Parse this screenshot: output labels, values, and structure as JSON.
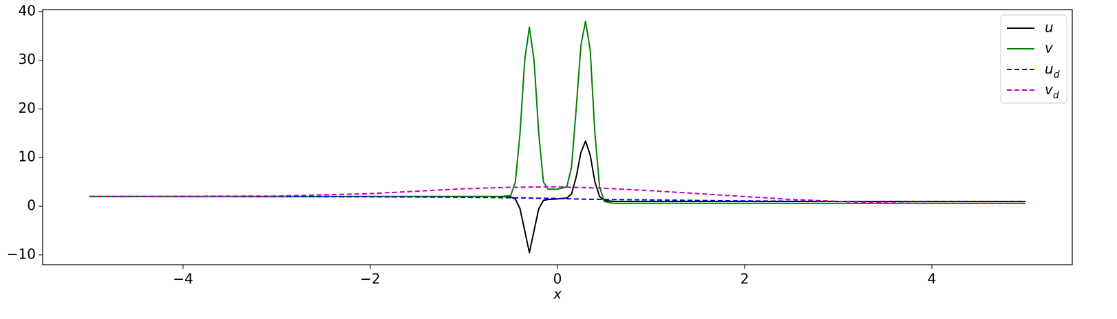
{
  "chart_data": {
    "type": "line",
    "x_label": "x",
    "xlim": [
      -5.5,
      5.5
    ],
    "ylim": [
      -12,
      40.4
    ],
    "xticks": [
      {
        "value": -4,
        "label": "−4"
      },
      {
        "value": -2,
        "label": "−2"
      },
      0,
      2,
      4
    ],
    "yticks": [
      {
        "value": -10,
        "label": "−10"
      },
      0,
      10,
      20,
      30,
      40
    ],
    "legend": "upper right",
    "series": [
      {
        "name": "u",
        "color": "#000000",
        "dash": "solid",
        "x": [
          -5,
          -4,
          -3,
          -2,
          -1.5,
          -1,
          -0.8,
          -0.6,
          -0.5,
          -0.45,
          -0.4,
          -0.35,
          -0.3,
          -0.25,
          -0.2,
          -0.15,
          -0.1,
          0,
          0.1,
          0.15,
          0.2,
          0.25,
          0.3,
          0.35,
          0.4,
          0.45,
          0.5,
          0.6,
          0.8,
          1,
          1.5,
          2,
          3,
          4,
          5
        ],
        "values": [
          2,
          2,
          2,
          2,
          2,
          2,
          2,
          2,
          1.9,
          1.5,
          -0.5,
          -5,
          -9.5,
          -5,
          -0.5,
          1.2,
          1.4,
          1.5,
          1.7,
          2.5,
          6,
          11,
          13.4,
          10.5,
          5,
          2,
          1.2,
          1.0,
          1.0,
          1.0,
          1.0,
          1.0,
          1.0,
          1.0,
          1.0
        ]
      },
      {
        "name": "v",
        "color": "#008000",
        "dash": "solid",
        "x": [
          -5,
          -4,
          -3,
          -2,
          -1.5,
          -1,
          -0.8,
          -0.6,
          -0.5,
          -0.45,
          -0.4,
          -0.35,
          -0.3,
          -0.25,
          -0.2,
          -0.15,
          -0.1,
          0,
          0.1,
          0.15,
          0.2,
          0.25,
          0.3,
          0.35,
          0.4,
          0.45,
          0.5,
          0.6,
          0.8,
          1,
          1.5,
          2,
          3,
          4,
          5
        ],
        "values": [
          2,
          2,
          2,
          2,
          2,
          2,
          2,
          2,
          2.2,
          5,
          15,
          30,
          36.8,
          30,
          15,
          5,
          3.5,
          3.5,
          4,
          8,
          20,
          33,
          38,
          32,
          15,
          4,
          1,
          0.6,
          0.6,
          0.6,
          0.6,
          0.6,
          0.6,
          0.6,
          0.6
        ]
      },
      {
        "name": "u_d",
        "color": "#0000ff",
        "dash": "dashed",
        "x": [
          -5,
          -2,
          -1,
          -0.5,
          0,
          0.3,
          1,
          2,
          3,
          4,
          5
        ],
        "values": [
          2,
          1.95,
          1.85,
          1.75,
          1.6,
          1.45,
          1.3,
          1.1,
          1.0,
          1.0,
          1.0
        ]
      },
      {
        "name": "v_d",
        "color": "#bf00bf",
        "dash": "dashed",
        "x": [
          -5,
          -3,
          -2,
          -1.5,
          -1,
          -0.5,
          0,
          0.5,
          1,
          1.5,
          2,
          2.5,
          3,
          3.5,
          4,
          5
        ],
        "values": [
          2,
          2.1,
          2.6,
          3.1,
          3.6,
          3.9,
          4.0,
          3.7,
          3.2,
          2.6,
          2.0,
          1.4,
          1.0,
          0.7,
          0.6,
          0.6
        ]
      }
    ]
  }
}
